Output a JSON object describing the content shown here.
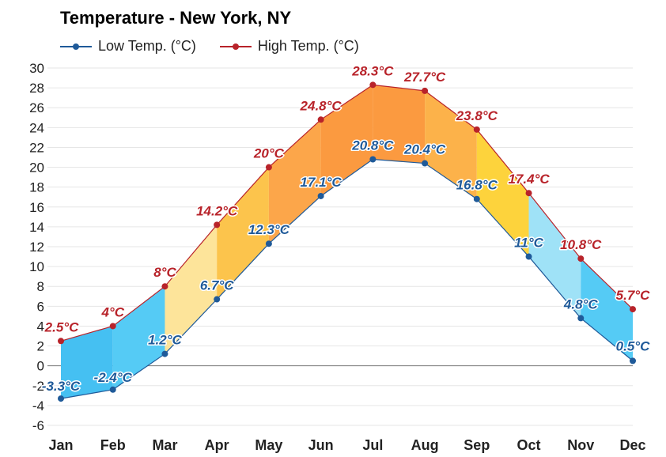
{
  "chart_data": {
    "type": "line",
    "title": "Temperature - New York, NY",
    "categories": [
      "Jan",
      "Feb",
      "Mar",
      "Apr",
      "May",
      "Jun",
      "Jul",
      "Aug",
      "Sep",
      "Oct",
      "Nov",
      "Dec"
    ],
    "series": [
      {
        "name": "Low Temp. (°C)",
        "color": "#1f5a99",
        "values": [
          -3.3,
          -2.4,
          1.2,
          6.7,
          12.3,
          17.1,
          20.8,
          20.4,
          16.8,
          11,
          4.8,
          0.5
        ],
        "labels": [
          "-3.3°C",
          "-2.4°C",
          "1.2°C",
          "6.7°C",
          "12.3°C",
          "17.1°C",
          "20.8°C",
          "20.4°C",
          "16.8°C",
          "11°C",
          "4.8°C",
          "0.5°C"
        ]
      },
      {
        "name": "High Temp. (°C)",
        "color": "#b8232a",
        "values": [
          2.5,
          4,
          8,
          14.2,
          20,
          24.8,
          28.3,
          27.7,
          23.8,
          17.4,
          10.8,
          5.7
        ],
        "labels": [
          "2.5°C",
          "4°C",
          "8°C",
          "14.2°C",
          "20°C",
          "24.8°C",
          "28.3°C",
          "27.7°C",
          "23.8°C",
          "17.4°C",
          "10.8°C",
          "5.7°C"
        ]
      }
    ],
    "band_colors": [
      "#45c0f2",
      "#55cbf5",
      "#fde49a",
      "#fcc44c",
      "#fca64a",
      "#fb9a40",
      "#fb9a40",
      "#fcb24a",
      "#fdd33c",
      "#9fe2f7",
      "#55cbf5",
      "#45c0f2"
    ],
    "ylim": [
      -6,
      30
    ],
    "yticks": [
      "-6",
      "-4",
      "-2",
      "0",
      "2",
      "4",
      "6",
      "8",
      "10",
      "12",
      "14",
      "16",
      "18",
      "20",
      "22",
      "24",
      "26",
      "28",
      "30"
    ],
    "xlabel": "",
    "ylabel": "",
    "grid": true,
    "legend_position": "top-left"
  }
}
